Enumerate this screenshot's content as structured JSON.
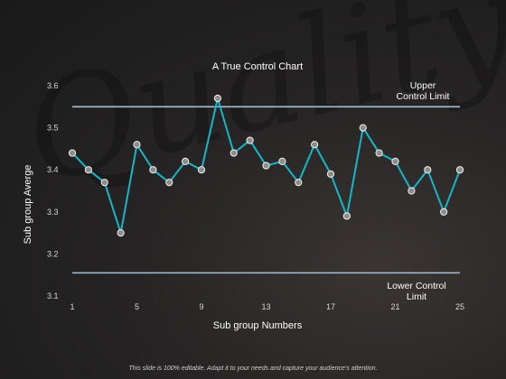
{
  "watermark": "Quality",
  "footer": "This slide is 100% editable. Adapt it to your needs and capture your audience's attention.",
  "colors": {
    "line": "#14b6c8",
    "limit": "#a9bfd1",
    "marker_fill": "#8c8c8c",
    "marker_stroke": "#f2f2f2",
    "text": "#ffffff"
  },
  "chart_data": {
    "type": "line",
    "title": "A True Control Chart",
    "xlabel": "Sub group Numbers",
    "ylabel": "Sub group Averge",
    "x": [
      1,
      2,
      3,
      4,
      5,
      6,
      7,
      8,
      9,
      10,
      11,
      12,
      13,
      14,
      15,
      16,
      17,
      18,
      19,
      20,
      21,
      22,
      23,
      24,
      25
    ],
    "x_ticks": [
      1,
      5,
      9,
      13,
      17,
      21,
      25
    ],
    "ylim": [
      3.1,
      3.6
    ],
    "y_ticks": [
      3.1,
      3.2,
      3.3,
      3.4,
      3.5,
      3.6
    ],
    "series": [
      {
        "values": [
          3.44,
          3.4,
          3.37,
          3.25,
          3.46,
          3.4,
          3.37,
          3.42,
          3.4,
          3.57,
          3.44,
          3.47,
          3.41,
          3.42,
          3.37,
          3.46,
          3.39,
          3.29,
          3.5,
          3.44,
          3.42,
          3.35,
          3.4,
          3.3,
          3.4
        ]
      }
    ],
    "control_limits": [
      {
        "label": "Upper Control Limit",
        "value": 3.55
      },
      {
        "label": "Lower Control Limit",
        "value": 3.155
      }
    ],
    "grid": false
  }
}
